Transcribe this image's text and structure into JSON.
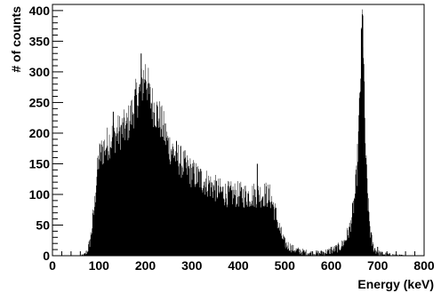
{
  "chart_data": {
    "type": "histogram",
    "xlabel": "Energy (keV)",
    "ylabel": "# of counts",
    "xlim": [
      0,
      800
    ],
    "ylim": [
      0,
      410
    ],
    "x_ticks": [
      0,
      100,
      200,
      300,
      400,
      500,
      600,
      700,
      800
    ],
    "y_ticks": [
      0,
      50,
      100,
      150,
      200,
      250,
      300,
      350,
      400
    ],
    "grid": false,
    "bin_width_keV": 1,
    "series": [
      {
        "x": [
          0,
          60,
          70,
          75,
          80,
          85,
          90,
          95,
          100,
          110,
          120,
          130,
          140,
          150,
          160,
          170,
          180,
          190,
          195,
          200,
          205,
          210,
          220,
          230,
          240,
          250,
          260,
          270,
          280,
          300,
          320,
          340,
          360,
          380,
          400,
          420,
          440,
          450,
          460,
          470,
          480,
          490,
          500,
          520,
          540,
          560,
          580,
          600,
          620,
          630,
          640,
          645,
          650,
          655,
          660,
          663,
          665,
          667,
          668,
          670,
          672,
          675,
          680,
          685,
          690,
          700,
          720,
          760,
          800
        ],
        "y": [
          0,
          0,
          2,
          8,
          20,
          45,
          80,
          125,
          160,
          175,
          185,
          195,
          200,
          205,
          210,
          230,
          255,
          270,
          285,
          300,
          280,
          255,
          240,
          225,
          205,
          180,
          170,
          160,
          150,
          135,
          125,
          115,
          105,
          100,
          100,
          98,
          100,
          100,
          100,
          95,
          70,
          40,
          20,
          10,
          6,
          4,
          5,
          8,
          15,
          25,
          45,
          65,
          90,
          130,
          220,
          290,
          350,
          385,
          380,
          320,
          230,
          150,
          80,
          35,
          15,
          5,
          2,
          0,
          0
        ],
        "peak_values": [
          [
            190,
            330
          ],
          [
            667,
            392
          ],
          [
            130,
            235
          ],
          [
            440,
            150
          ]
        ]
      }
    ]
  }
}
